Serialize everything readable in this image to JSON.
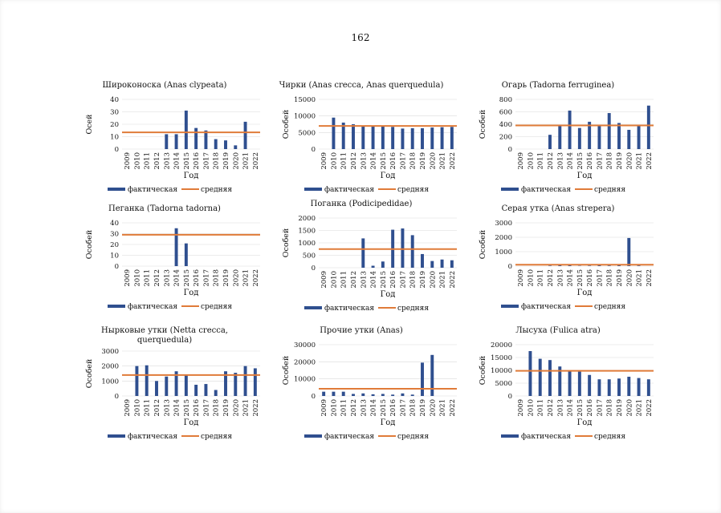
{
  "page": {
    "number": "162"
  },
  "common": {
    "years": [
      "2009",
      "2010",
      "2011",
      "2012",
      "2013",
      "2014",
      "2015",
      "2016",
      "2017",
      "2018",
      "2019",
      "2020",
      "2021",
      "2022"
    ],
    "xlabel": "Год",
    "legend_actual": "фактическая",
    "legend_mean": "средняя",
    "bar_color": "#2f4f8f",
    "mean_color": "#e07b39"
  },
  "chart_data": [
    {
      "type": "bar",
      "title": [
        "Широконоска (Anas clypeata)"
      ],
      "ylabel": "Осей",
      "ylim": [
        0,
        40
      ],
      "yticks": [
        "0",
        "10",
        "20",
        "30",
        "40"
      ],
      "mean": 13.5,
      "values": [
        0,
        0,
        0,
        0,
        12,
        12,
        31,
        17,
        15,
        8,
        7,
        3,
        22,
        0
      ]
    },
    {
      "type": "bar",
      "title": [
        "Чирки (Anas crecca, Anas querquedula)"
      ],
      "ylabel": "Особей",
      "ylim": [
        0,
        15000
      ],
      "yticks": [
        "0",
        "5000",
        "10000",
        "15000"
      ],
      "mean": 7000,
      "values": [
        0,
        9500,
        8000,
        7500,
        7000,
        6800,
        6800,
        6700,
        6200,
        6300,
        6300,
        6500,
        6600,
        6700
      ]
    },
    {
      "type": "bar",
      "title": [
        "Огарь (Tadorna ferruginea)"
      ],
      "ylabel": "Особей",
      "ylim": [
        0,
        800
      ],
      "yticks": [
        "0",
        "200",
        "400",
        "600",
        "800"
      ],
      "mean": 380,
      "values": [
        0,
        0,
        0,
        230,
        380,
        620,
        340,
        440,
        380,
        580,
        420,
        310,
        370,
        700
      ]
    },
    {
      "type": "bar",
      "title": [
        "Пеганка (Tadorna tadorna)"
      ],
      "ylabel": "Особей",
      "ylim": [
        0,
        40
      ],
      "yticks": [
        "0",
        "10",
        "20",
        "30",
        "40"
      ],
      "mean": 29,
      "values": [
        0,
        0,
        0,
        0,
        0,
        35,
        21,
        0,
        0,
        0,
        0,
        0,
        0,
        0
      ]
    },
    {
      "type": "bar",
      "title": [
        "Поганка (Podicipedidae)"
      ],
      "ylabel": "Особей",
      "ylim": [
        0,
        2000
      ],
      "yticks": [
        "0",
        "500",
        "1000",
        "1500",
        "2000"
      ],
      "mean": 750,
      "values": [
        0,
        0,
        0,
        0,
        1180,
        80,
        250,
        1530,
        1580,
        1310,
        550,
        270,
        330,
        300
      ]
    },
    {
      "type": "bar",
      "title": [
        "Серая утка (Anas strepera)"
      ],
      "ylabel": "Особей",
      "ylim": [
        0,
        3000
      ],
      "yticks": [
        "0",
        "1000",
        "2000",
        "3000"
      ],
      "mean": 100,
      "values": [
        0,
        0,
        0,
        30,
        80,
        60,
        20,
        30,
        60,
        40,
        80,
        1950,
        40,
        0
      ]
    },
    {
      "type": "bar",
      "title": [
        "Нырковые утки (Netta crecca,",
        "querquedula)"
      ],
      "ylabel": "Особей",
      "ylim": [
        0,
        3000
      ],
      "yticks": [
        "0",
        "1000",
        "2000",
        "3000"
      ],
      "mean": 1400,
      "values": [
        0,
        2000,
        2050,
        1000,
        1300,
        1650,
        1400,
        750,
        800,
        400,
        1650,
        1550,
        2000,
        1850
      ]
    },
    {
      "type": "bar",
      "title": [
        "Прочие утки (Anas)"
      ],
      "ylabel": "Особей",
      "ylim": [
        0,
        30000
      ],
      "yticks": [
        "0",
        "10000",
        "20000",
        "30000"
      ],
      "mean": 4200,
      "values": [
        2500,
        2500,
        2500,
        1200,
        1500,
        1000,
        1200,
        800,
        1500,
        800,
        19500,
        24000,
        0,
        0
      ]
    },
    {
      "type": "bar",
      "title": [
        "Лысуха (Fulica atra)"
      ],
      "ylabel": "Особей",
      "ylim": [
        0,
        20000
      ],
      "yticks": [
        "0",
        "5000",
        "10000",
        "15000",
        "20000"
      ],
      "mean": 9800,
      "values": [
        0,
        17500,
        14500,
        14000,
        11500,
        9800,
        9500,
        8200,
        6500,
        6500,
        6800,
        7500,
        7000,
        6500
      ]
    }
  ]
}
